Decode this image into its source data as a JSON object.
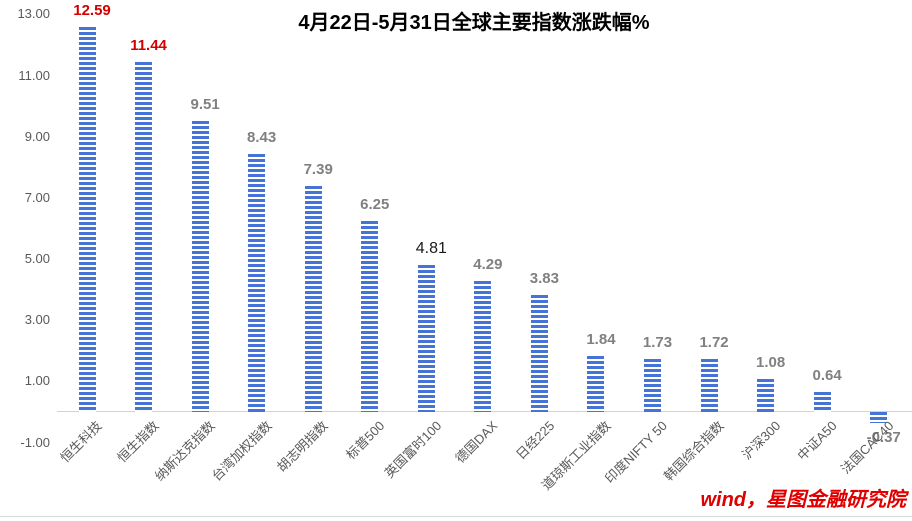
{
  "chart_data": {
    "type": "bar",
    "title": "4月22日-5月31日全球主要指数涨跌幅%",
    "categories": [
      "恒生科技",
      "恒生指数",
      "纳斯达克指数",
      "台湾加权指数",
      "胡志明指数",
      "标普500",
      "英国富时100",
      "德国DAX",
      "日经225",
      "道琼斯工业指数",
      "印度NIFTY 50",
      "韩国综合指数",
      "沪深300",
      "中证A50",
      "法国CAC40"
    ],
    "values": [
      12.59,
      11.44,
      9.51,
      8.43,
      7.39,
      6.25,
      4.81,
      4.29,
      3.83,
      1.84,
      1.73,
      1.72,
      1.08,
      0.64,
      -0.37
    ],
    "value_labels": [
      "12.59",
      "11.44",
      "9.51",
      "8.43",
      "7.39",
      "6.25",
      "4.81",
      "4.29",
      "3.83",
      "1.84",
      "1.73",
      "1.72",
      "1.08",
      "0.64",
      "-0.37"
    ],
    "value_label_styles": [
      "red",
      "red",
      "gray",
      "gray",
      "gray",
      "gray",
      "black",
      "gray",
      "gray",
      "gray",
      "gray",
      "gray",
      "gray",
      "gray",
      "gray"
    ],
    "y_ticks": [
      "13.00",
      "11.00",
      "9.00",
      "7.00",
      "5.00",
      "3.00",
      "1.00",
      "-1.00"
    ],
    "ylim": [
      -1,
      13
    ],
    "xlabel": "",
    "ylabel": "",
    "grid": false,
    "legend": false,
    "source_note": "wind，星图金融研究院"
  },
  "colors": {
    "bar_stripe_blue": "#4673D7",
    "bar_stripe_white": "#FFFFFF",
    "label_red": "#D40000",
    "label_gray": "#808080",
    "label_black": "#1A1A1A",
    "axis_text": "#595959",
    "axis_line": "#D3D3D3",
    "source_text": "#E00000"
  }
}
